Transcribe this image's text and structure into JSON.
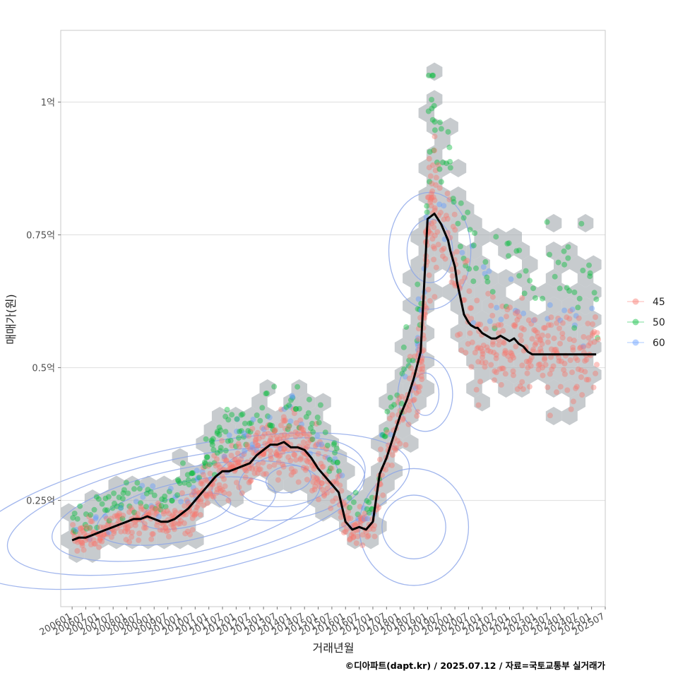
{
  "chart_data": {
    "type": "scatter",
    "xlabel": "거래년월",
    "ylabel": "매매가(원)",
    "caption": "©디아파트(dapt.kr) / 2025.07.12 / 자료=국토교통부 실거래가",
    "x_ticks": [
      "200601",
      "200607",
      "200701",
      "200707",
      "200801",
      "200807",
      "200901",
      "200907",
      "201001",
      "201007",
      "201101",
      "201107",
      "201201",
      "201207",
      "201301",
      "201307",
      "201401",
      "201407",
      "201501",
      "201507",
      "201601",
      "201607",
      "201701",
      "201707",
      "201801",
      "201807",
      "201901",
      "201907",
      "202001",
      "202007",
      "202101",
      "202107",
      "202201",
      "202207",
      "202301",
      "202307",
      "202401",
      "202407",
      "202501",
      "202507"
    ],
    "y_ticks": [
      {
        "value": 0.25,
        "label": "0.25억"
      },
      {
        "value": 0.5,
        "label": "0.5억"
      },
      {
        "value": 0.75,
        "label": "0.75억"
      },
      {
        "value": 1.0,
        "label": "1억"
      }
    ],
    "ylim": [
      0.05,
      1.135
    ],
    "xlim": [
      -5,
      234
    ],
    "grid": true,
    "legend_position": "right",
    "colors": {
      "series_45": "#f8766d",
      "series_50": "#00ba38",
      "series_60": "#619cff",
      "hexbin": "#a9afb4",
      "trend": "#000000",
      "contour": "#8aa4e8",
      "grid": "#dedede",
      "panel_border": "#c8c8c8"
    },
    "series": [
      {
        "name": "45",
        "color": "#f8766d"
      },
      {
        "name": "50",
        "color": "#00ba38"
      },
      {
        "name": "60",
        "color": "#619cff"
      }
    ],
    "trend_line": {
      "name": "moving average",
      "months": [
        0,
        3,
        6,
        9,
        12,
        15,
        18,
        21,
        24,
        27,
        30,
        33,
        36,
        39,
        42,
        45,
        48,
        51,
        54,
        57,
        60,
        63,
        66,
        69,
        72,
        75,
        78,
        81,
        84,
        87,
        90,
        93,
        96,
        99,
        102,
        105,
        108,
        111,
        114,
        117,
        120,
        123,
        126,
        129,
        132,
        135,
        138,
        141,
        144,
        147,
        150,
        153,
        156,
        159,
        162,
        165,
        166,
        168,
        169,
        171,
        172,
        174,
        175,
        177,
        178,
        180,
        182,
        184,
        186,
        188,
        190,
        192,
        194,
        196,
        198,
        200,
        202,
        204,
        206,
        208,
        210,
        212,
        214,
        216,
        218,
        220,
        222,
        224,
        226,
        228,
        230
      ],
      "values": [
        0.175,
        0.18,
        0.18,
        0.185,
        0.19,
        0.195,
        0.2,
        0.205,
        0.21,
        0.215,
        0.215,
        0.22,
        0.215,
        0.21,
        0.21,
        0.215,
        0.225,
        0.235,
        0.25,
        0.265,
        0.28,
        0.295,
        0.305,
        0.305,
        0.31,
        0.315,
        0.32,
        0.335,
        0.345,
        0.355,
        0.355,
        0.36,
        0.35,
        0.35,
        0.345,
        0.33,
        0.31,
        0.295,
        0.28,
        0.265,
        0.21,
        0.195,
        0.2,
        0.195,
        0.21,
        0.3,
        0.33,
        0.37,
        0.41,
        0.44,
        0.48,
        0.53,
        0.78,
        0.79,
        0.77,
        0.74,
        0.72,
        0.69,
        0.66,
        0.62,
        0.6,
        0.585,
        0.58,
        0.575,
        0.575,
        0.565,
        0.56,
        0.555,
        0.555,
        0.56,
        0.555,
        0.55,
        0.555,
        0.545,
        0.54,
        0.53,
        0.525,
        0.525,
        0.525,
        0.525,
        0.525,
        0.525,
        0.525,
        0.525,
        0.525,
        0.525,
        0.525,
        0.525,
        0.525,
        0.525,
        0.525
      ]
    },
    "hexbin_note": "light grey hexagonal bins under points",
    "density_contours": true
  }
}
